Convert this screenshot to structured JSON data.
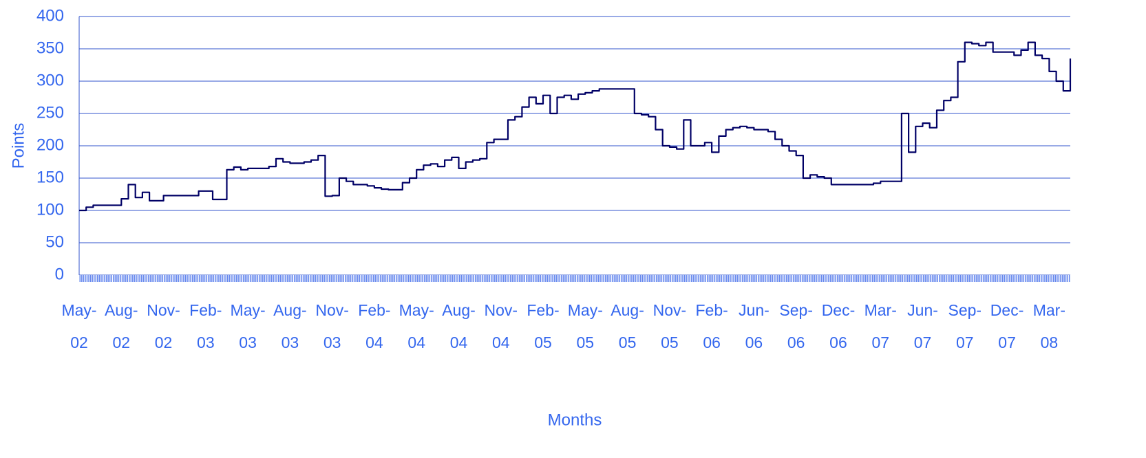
{
  "chart_data": {
    "type": "line",
    "x_label": "Months",
    "y_label": "Points",
    "categories": [
      "May-02",
      null,
      null,
      null,
      null,
      null,
      "Aug-02",
      null,
      null,
      null,
      null,
      null,
      "Nov-02",
      null,
      null,
      null,
      null,
      null,
      "Feb-03",
      null,
      null,
      null,
      null,
      null,
      "May-03",
      null,
      null,
      null,
      null,
      null,
      "Aug-03",
      null,
      null,
      null,
      null,
      null,
      "Nov-03",
      null,
      null,
      null,
      null,
      null,
      "Feb-04",
      null,
      null,
      null,
      null,
      null,
      "May-04",
      null,
      null,
      null,
      null,
      null,
      "Aug-04",
      null,
      null,
      null,
      null,
      null,
      "Nov-04",
      null,
      null,
      null,
      null,
      null,
      "Feb-05",
      null,
      null,
      null,
      null,
      null,
      "May-05",
      null,
      null,
      null,
      null,
      null,
      "Aug-05",
      null,
      null,
      null,
      null,
      null,
      "Nov-05",
      null,
      null,
      null,
      null,
      null,
      "Feb-06",
      null,
      null,
      null,
      null,
      null,
      "Jun-06",
      null,
      null,
      null,
      null,
      null,
      "Sep-06",
      null,
      null,
      null,
      null,
      null,
      "Dec-06",
      null,
      null,
      null,
      null,
      null,
      "Mar-07",
      null,
      null,
      null,
      null,
      null,
      "Jun-07",
      null,
      null,
      null,
      null,
      null,
      "Sep-07",
      null,
      null,
      null,
      null,
      null,
      "Dec-07",
      null,
      null,
      null,
      null,
      null,
      "Mar-08",
      null,
      null,
      null
    ],
    "series": [
      {
        "name": "Points",
        "color": "#000066",
        "values": [
          100,
          105,
          108,
          108,
          108,
          108,
          118,
          140,
          120,
          128,
          115,
          115,
          123,
          123,
          123,
          123,
          123,
          130,
          130,
          117,
          117,
          163,
          167,
          163,
          165,
          165,
          165,
          168,
          180,
          175,
          173,
          173,
          175,
          178,
          185,
          122,
          123,
          150,
          145,
          140,
          140,
          138,
          135,
          133,
          132,
          132,
          143,
          150,
          163,
          170,
          172,
          168,
          178,
          182,
          165,
          175,
          178,
          180,
          205,
          210,
          210,
          240,
          245,
          260,
          275,
          265,
          278,
          250,
          275,
          278,
          272,
          280,
          282,
          285,
          288,
          288,
          288,
          288,
          288,
          250,
          248,
          245,
          225,
          200,
          198,
          195,
          240,
          200,
          200,
          205,
          190,
          215,
          225,
          228,
          230,
          228,
          225,
          225,
          222,
          210,
          200,
          192,
          185,
          150,
          155,
          152,
          150,
          140,
          140,
          140,
          140,
          140,
          140,
          142,
          145,
          145,
          145,
          250,
          190,
          230,
          235,
          228,
          255,
          270,
          275,
          330,
          360,
          358,
          355,
          360,
          345,
          345,
          345,
          340,
          348,
          360,
          340,
          335,
          315,
          300,
          285,
          335
        ]
      }
    ],
    "ylim": [
      0,
      400
    ],
    "yticks": [
      0,
      50,
      100,
      150,
      200,
      250,
      300,
      350,
      400
    ],
    "grid": true
  }
}
